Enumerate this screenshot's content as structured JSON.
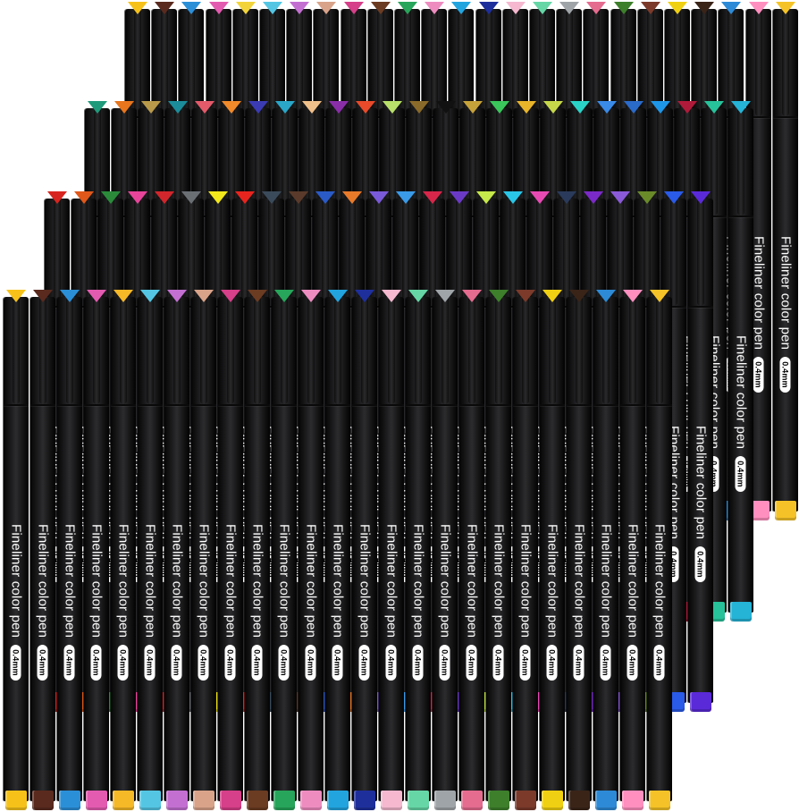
{
  "product": {
    "pen_label": "Fineliner color pen",
    "tip_size": "0.4mm"
  },
  "rows": [
    {
      "name": "back-row",
      "show_label": true,
      "colors": [
        "#f6c21a",
        "#5a2a1e",
        "#2b8fd8",
        "#e35bb0",
        "#f2d43a",
        "#54c6e4",
        "#c36fd1",
        "#d9a38a",
        "#d63f89",
        "#6b3b22",
        "#27a55a",
        "#ee8cc0",
        "#22a4df",
        "#1e2f9c",
        "#f5b8cf",
        "#66d6a6",
        "#9fa4a8",
        "#e56b8f",
        "#3d7f2b",
        "#7b3a2a",
        "#f0d012",
        "#3a2418",
        "#2d8ad6",
        "#ff8fbf",
        "#f5c327"
      ]
    },
    {
      "name": "second-row",
      "show_label": true,
      "colors": [
        "#1f9a7a",
        "#e8761d",
        "#b89a4a",
        "#1b8c9a",
        "#e35a6a",
        "#f08a2a",
        "#3b3bb4",
        "#2aa6c9",
        "#f0c08a",
        "#8a2ea8",
        "#e84a2a",
        "#b8e06a",
        "#8a6a2a",
        "#111111",
        "#c6a23a",
        "#3ac65a",
        "#e8b42a",
        "#c6d84a",
        "#2ad2c6",
        "#3a8ae8",
        "#2a6ac9",
        "#1e96e8",
        "#b01a3a",
        "#27c29a",
        "#25b3d6"
      ]
    },
    {
      "name": "third-row",
      "show_label": true,
      "colors": [
        "#d8241e",
        "#e0581a",
        "#2a8a3a",
        "#e8449a",
        "#d1262c",
        "#6a6f74",
        "#f2e81c",
        "#e8241e",
        "#3a4a5a",
        "#5a3a2a",
        "#2a5ac6",
        "#e87a2a",
        "#7a5ad8",
        "#3a9ae8",
        "#d6264a",
        "#6a3ac6",
        "#c6e84a",
        "#2ac6e8",
        "#e84ab4",
        "#2a3a5a",
        "#7a2ac6",
        "#8a5ad8",
        "#6a8a2a",
        "#2a5ae8",
        "#5a2ad8"
      ]
    },
    {
      "name": "front-row",
      "show_label": true,
      "colors": [
        "#f6c21a",
        "#5a2a1e",
        "#2b8fd8",
        "#e35bb0",
        "#f5b827",
        "#54c6e4",
        "#c36fd1",
        "#d9a38a",
        "#d63f89",
        "#6b3b22",
        "#27a55a",
        "#ee8cc0",
        "#22a4df",
        "#1e2f9c",
        "#f5b8cf",
        "#66d6a6",
        "#9fa4a8",
        "#e56b8f",
        "#3d7f2b",
        "#7b3a2a",
        "#f0d012",
        "#3a2418",
        "#2d8ad6",
        "#ff8fbf",
        "#f5c327"
      ]
    }
  ]
}
